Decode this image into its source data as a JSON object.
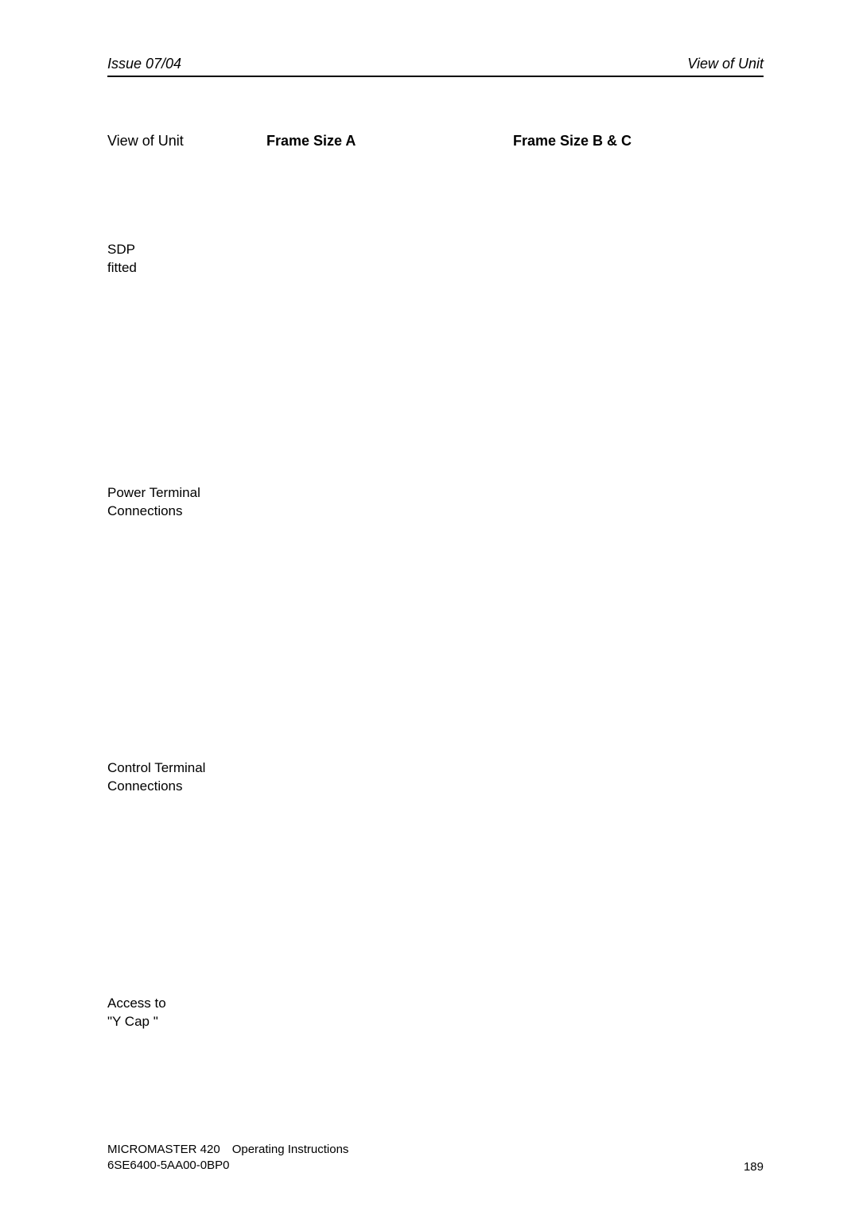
{
  "header": {
    "left": "Issue 07/04",
    "right": "View of Unit"
  },
  "columns": {
    "c1": "View of Unit",
    "c2": "Frame Size A",
    "c3": "Frame Size B & C"
  },
  "rows": {
    "sdp": {
      "l1": "SDP",
      "l2": "fitted"
    },
    "power": {
      "l1": "Power Terminal",
      "l2": "Connections"
    },
    "ctrl": {
      "l1": "Control Terminal",
      "l2": "Connections"
    },
    "ycap": {
      "l1": "Access to",
      "l2": "\"Y Cap \""
    }
  },
  "footer": {
    "line1": "MICROMASTER 420 Operating Instructions",
    "line2": "6SE6400-5AA00-0BP0",
    "page": "189"
  }
}
